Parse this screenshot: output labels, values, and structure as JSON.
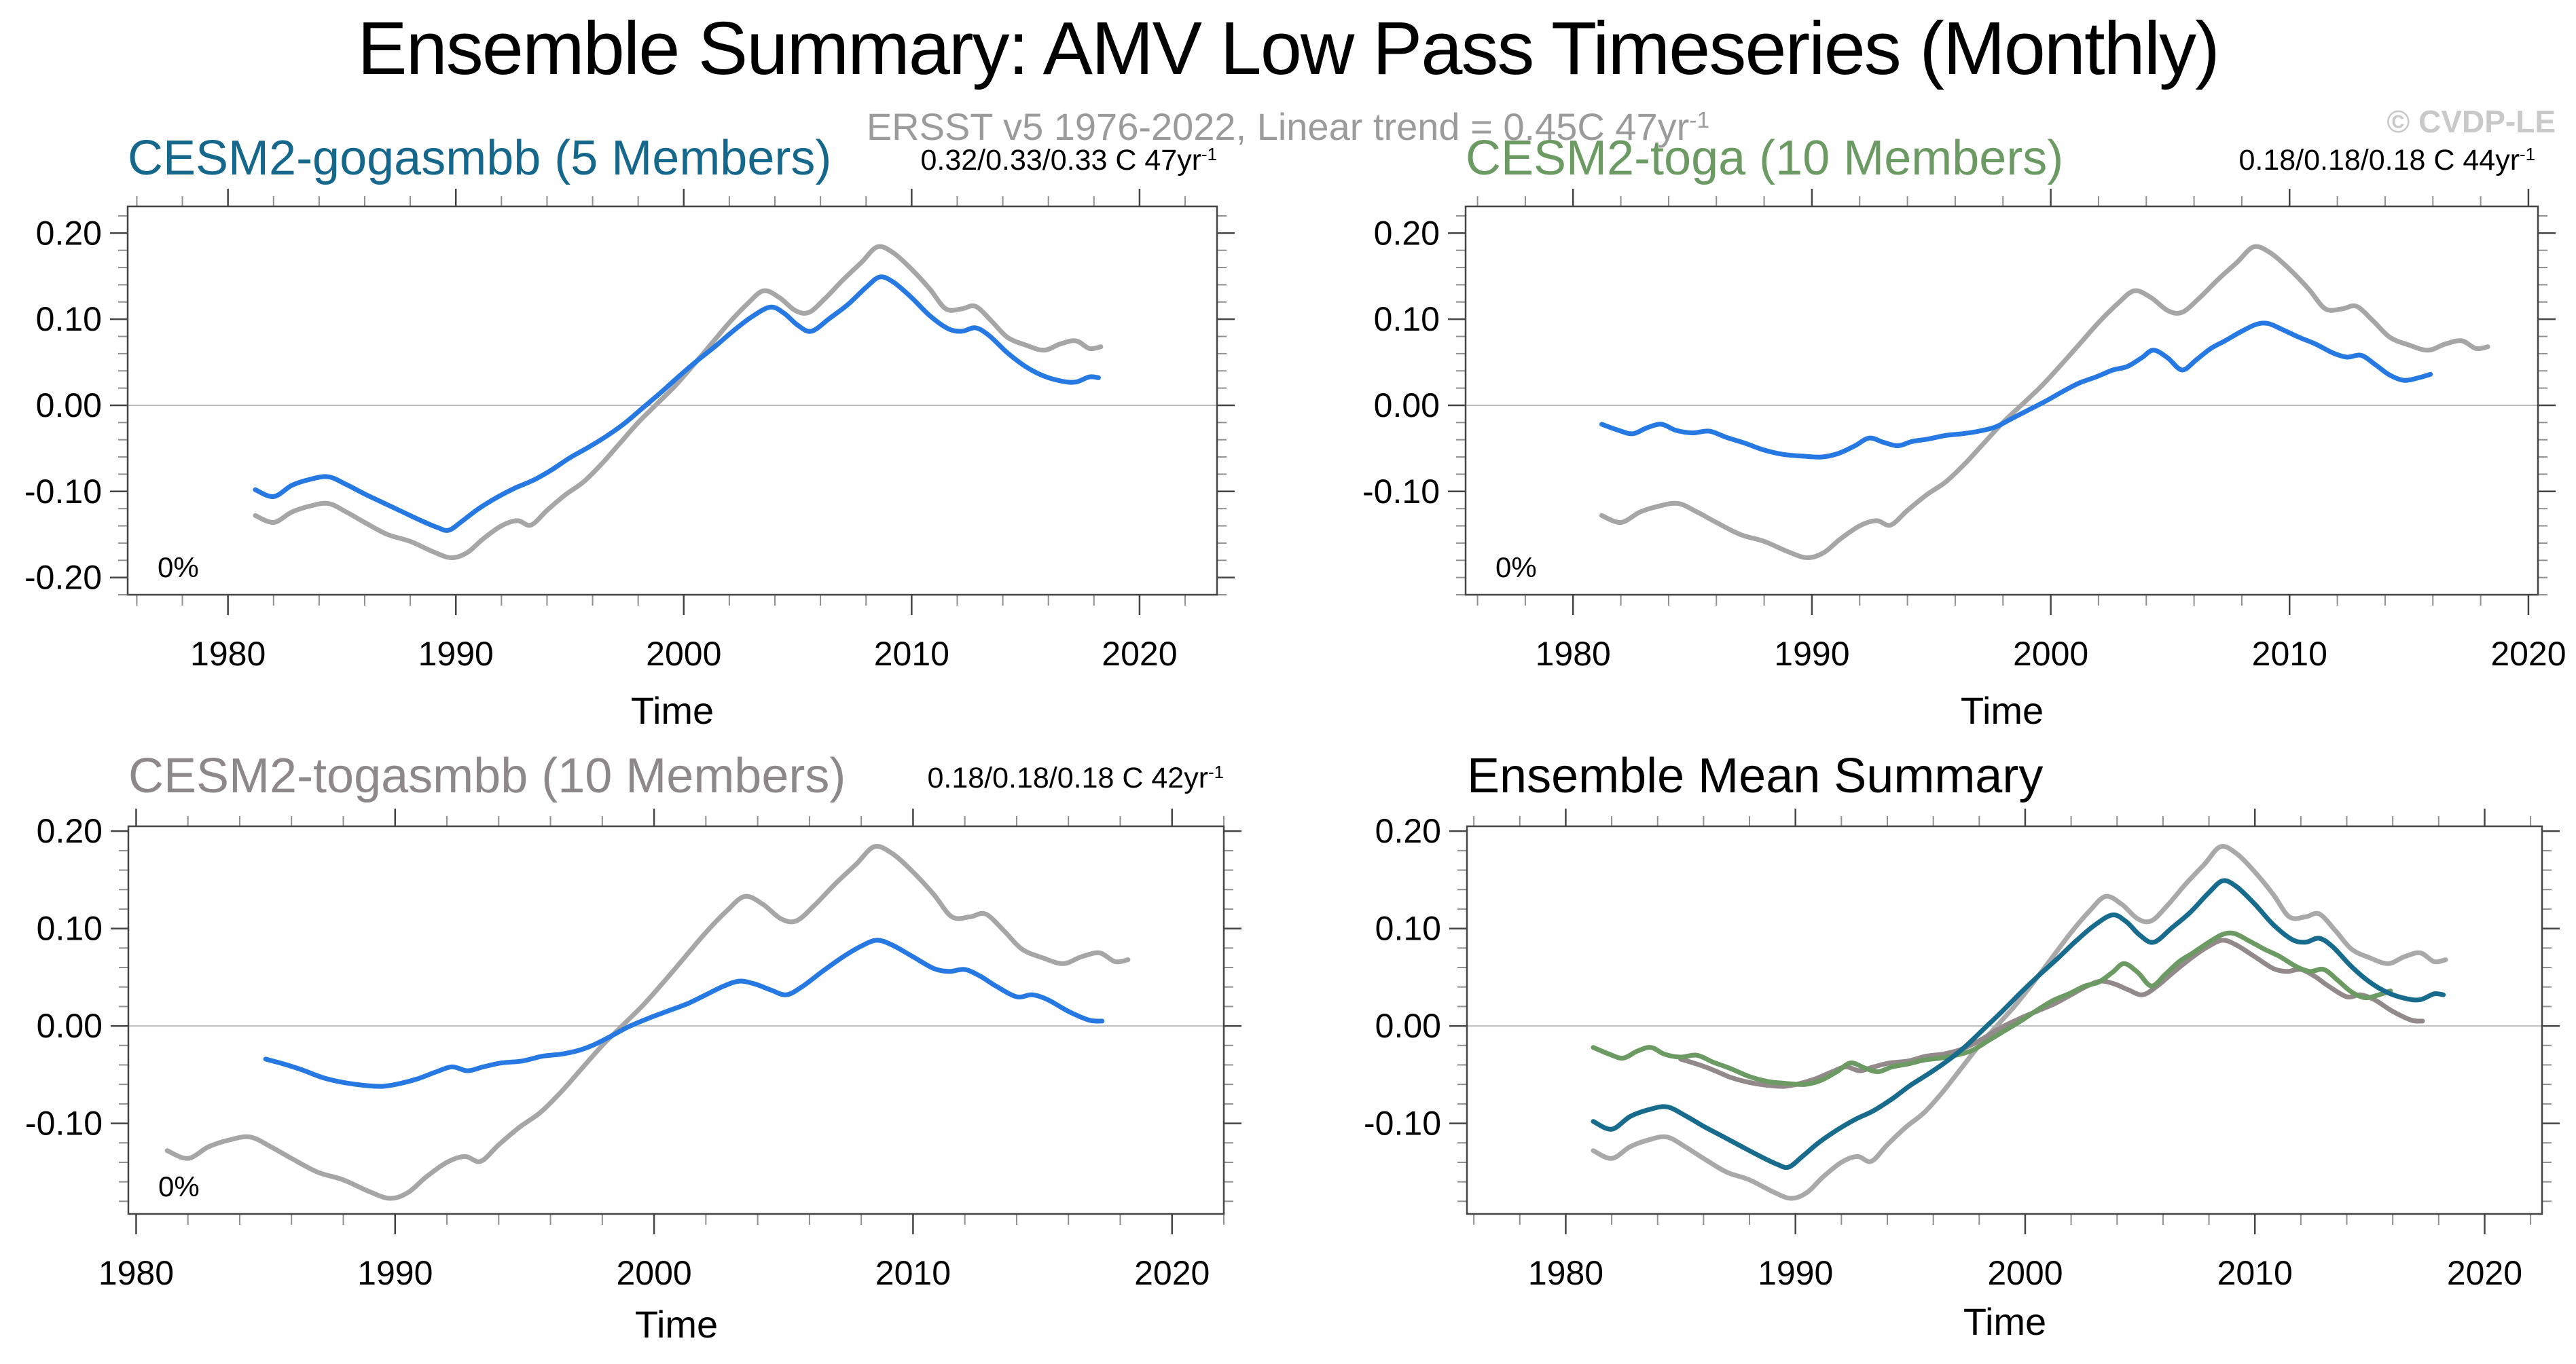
{
  "header": {
    "title": "Ensemble Summary: AMV Low Pass Timeseries (Monthly)",
    "subtitle": "ERSST v5 1976-2022, Linear trend = 0.45C 47yr",
    "subtitle_sup": "-1",
    "watermark": "© CVDP-LE"
  },
  "chart_data": {
    "type": "line",
    "xlabel": "Time",
    "grid": false,
    "legend": "none",
    "x_tick_years": [
      1980,
      1990,
      2000,
      2010,
      2020
    ],
    "x_tick_labels": [
      "1980",
      "1990",
      "2000",
      "2010",
      "2020"
    ],
    "colors": {
      "observations_gray": "#a6a6a6",
      "member_blue": "#2679e2",
      "gogasmbb_teal": "#176b8c",
      "toga_green": "#6b9a62",
      "togasmbb_mauve": "#93898a",
      "zero_line": "#bdbdbd",
      "frame": "#444444",
      "subtitle_gray": "#9b9b9b",
      "watermark_gray": "#c9c9c9"
    },
    "series": {
      "obs": {
        "points": [
          [
            1981.2,
            -0.128
          ],
          [
            1982.0,
            -0.136
          ],
          [
            1982.8,
            -0.124
          ],
          [
            1983.6,
            -0.117
          ],
          [
            1984.4,
            -0.114
          ],
          [
            1985.2,
            -0.124
          ],
          [
            1986.0,
            -0.136
          ],
          [
            1987.0,
            -0.15
          ],
          [
            1988.0,
            -0.158
          ],
          [
            1989.0,
            -0.17
          ],
          [
            1989.8,
            -0.177
          ],
          [
            1990.5,
            -0.171
          ],
          [
            1991.2,
            -0.155
          ],
          [
            1992.0,
            -0.14
          ],
          [
            1992.7,
            -0.134
          ],
          [
            1993.3,
            -0.139
          ],
          [
            1994.0,
            -0.122
          ],
          [
            1994.8,
            -0.104
          ],
          [
            1995.6,
            -0.089
          ],
          [
            1996.4,
            -0.068
          ],
          [
            1997.2,
            -0.044
          ],
          [
            1998.0,
            -0.02
          ],
          [
            1998.8,
            0.001
          ],
          [
            1999.6,
            0.022
          ],
          [
            2000.4,
            0.046
          ],
          [
            2001.2,
            0.071
          ],
          [
            2002.0,
            0.096
          ],
          [
            2002.8,
            0.118
          ],
          [
            2003.5,
            0.133
          ],
          [
            2004.2,
            0.125
          ],
          [
            2004.9,
            0.11
          ],
          [
            2005.5,
            0.108
          ],
          [
            2006.2,
            0.124
          ],
          [
            2007.0,
            0.146
          ],
          [
            2007.8,
            0.166
          ],
          [
            2008.5,
            0.184
          ],
          [
            2009.2,
            0.177
          ],
          [
            2010.0,
            0.158
          ],
          [
            2010.8,
            0.135
          ],
          [
            2011.5,
            0.112
          ],
          [
            2012.2,
            0.112
          ],
          [
            2012.8,
            0.115
          ],
          [
            2013.5,
            0.098
          ],
          [
            2014.2,
            0.079
          ],
          [
            2015.0,
            0.07
          ],
          [
            2015.8,
            0.064
          ],
          [
            2016.5,
            0.071
          ],
          [
            2017.2,
            0.075
          ],
          [
            2017.8,
            0.066
          ],
          [
            2018.3,
            0.068
          ]
        ]
      },
      "gogasmbb": {
        "points": [
          [
            1981.2,
            -0.098
          ],
          [
            1982.0,
            -0.106
          ],
          [
            1982.8,
            -0.093
          ],
          [
            1983.6,
            -0.086
          ],
          [
            1984.4,
            -0.083
          ],
          [
            1985.2,
            -0.092
          ],
          [
            1986.0,
            -0.103
          ],
          [
            1986.8,
            -0.113
          ],
          [
            1987.6,
            -0.123
          ],
          [
            1988.4,
            -0.133
          ],
          [
            1989.2,
            -0.142
          ],
          [
            1989.7,
            -0.145
          ],
          [
            1990.3,
            -0.134
          ],
          [
            1991.0,
            -0.12
          ],
          [
            1991.8,
            -0.107
          ],
          [
            1992.6,
            -0.096
          ],
          [
            1993.4,
            -0.087
          ],
          [
            1994.2,
            -0.075
          ],
          [
            1995.0,
            -0.061
          ],
          [
            1995.8,
            -0.049
          ],
          [
            1996.6,
            -0.036
          ],
          [
            1997.4,
            -0.021
          ],
          [
            1998.2,
            -0.003
          ],
          [
            1999.0,
            0.015
          ],
          [
            1999.8,
            0.034
          ],
          [
            2000.6,
            0.052
          ],
          [
            2001.4,
            0.069
          ],
          [
            2002.2,
            0.087
          ],
          [
            2003.0,
            0.103
          ],
          [
            2003.8,
            0.114
          ],
          [
            2004.4,
            0.107
          ],
          [
            2005.0,
            0.093
          ],
          [
            2005.6,
            0.086
          ],
          [
            2006.4,
            0.101
          ],
          [
            2007.2,
            0.117
          ],
          [
            2008.0,
            0.137
          ],
          [
            2008.6,
            0.149
          ],
          [
            2009.2,
            0.143
          ],
          [
            2010.0,
            0.125
          ],
          [
            2010.8,
            0.104
          ],
          [
            2011.6,
            0.089
          ],
          [
            2012.2,
            0.086
          ],
          [
            2012.8,
            0.09
          ],
          [
            2013.4,
            0.081
          ],
          [
            2014.2,
            0.061
          ],
          [
            2015.0,
            0.045
          ],
          [
            2015.8,
            0.034
          ],
          [
            2016.6,
            0.028
          ],
          [
            2017.2,
            0.027
          ],
          [
            2017.8,
            0.033
          ],
          [
            2018.2,
            0.032
          ]
        ]
      },
      "toga": {
        "points": [
          [
            1981.2,
            -0.022
          ],
          [
            1981.9,
            -0.029
          ],
          [
            1982.5,
            -0.033
          ],
          [
            1983.1,
            -0.026
          ],
          [
            1983.7,
            -0.022
          ],
          [
            1984.3,
            -0.029
          ],
          [
            1985.0,
            -0.032
          ],
          [
            1985.7,
            -0.03
          ],
          [
            1986.4,
            -0.037
          ],
          [
            1987.2,
            -0.044
          ],
          [
            1988.0,
            -0.052
          ],
          [
            1988.8,
            -0.057
          ],
          [
            1989.6,
            -0.059
          ],
          [
            1990.4,
            -0.06
          ],
          [
            1991.1,
            -0.056
          ],
          [
            1991.8,
            -0.047
          ],
          [
            1992.4,
            -0.038
          ],
          [
            1993.0,
            -0.043
          ],
          [
            1993.6,
            -0.047
          ],
          [
            1994.2,
            -0.042
          ],
          [
            1994.9,
            -0.039
          ],
          [
            1995.6,
            -0.035
          ],
          [
            1996.3,
            -0.033
          ],
          [
            1997.0,
            -0.03
          ],
          [
            1997.7,
            -0.025
          ],
          [
            1998.4,
            -0.015
          ],
          [
            1999.1,
            -0.005
          ],
          [
            1999.8,
            0.005
          ],
          [
            2000.5,
            0.016
          ],
          [
            2001.2,
            0.026
          ],
          [
            2001.9,
            0.033
          ],
          [
            2002.6,
            0.041
          ],
          [
            2003.2,
            0.045
          ],
          [
            2003.8,
            0.055
          ],
          [
            2004.3,
            0.064
          ],
          [
            2004.9,
            0.055
          ],
          [
            2005.5,
            0.041
          ],
          [
            2006.1,
            0.053
          ],
          [
            2006.7,
            0.066
          ],
          [
            2007.3,
            0.075
          ],
          [
            2008.0,
            0.086
          ],
          [
            2008.6,
            0.094
          ],
          [
            2009.1,
            0.095
          ],
          [
            2009.7,
            0.088
          ],
          [
            2010.4,
            0.079
          ],
          [
            2011.1,
            0.071
          ],
          [
            2011.8,
            0.061
          ],
          [
            2012.4,
            0.056
          ],
          [
            2013.0,
            0.058
          ],
          [
            2013.6,
            0.047
          ],
          [
            2014.2,
            0.035
          ],
          [
            2014.8,
            0.029
          ],
          [
            2015.4,
            0.032
          ],
          [
            2015.9,
            0.036
          ]
        ]
      },
      "togasmbb": {
        "points": [
          [
            1985.0,
            -0.034
          ],
          [
            1985.7,
            -0.039
          ],
          [
            1986.4,
            -0.045
          ],
          [
            1987.2,
            -0.053
          ],
          [
            1988.0,
            -0.058
          ],
          [
            1988.8,
            -0.061
          ],
          [
            1989.5,
            -0.062
          ],
          [
            1990.2,
            -0.059
          ],
          [
            1990.9,
            -0.054
          ],
          [
            1991.6,
            -0.047
          ],
          [
            1992.2,
            -0.042
          ],
          [
            1992.8,
            -0.046
          ],
          [
            1993.4,
            -0.042
          ],
          [
            1994.1,
            -0.038
          ],
          [
            1994.9,
            -0.036
          ],
          [
            1995.7,
            -0.031
          ],
          [
            1996.4,
            -0.029
          ],
          [
            1997.1,
            -0.025
          ],
          [
            1997.7,
            -0.019
          ],
          [
            1998.3,
            -0.011
          ],
          [
            1999.0,
            -0.001
          ],
          [
            1999.8,
            0.008
          ],
          [
            2000.6,
            0.016
          ],
          [
            2001.3,
            0.023
          ],
          [
            2002.0,
            0.032
          ],
          [
            2002.7,
            0.041
          ],
          [
            2003.3,
            0.046
          ],
          [
            2003.9,
            0.043
          ],
          [
            2004.5,
            0.037
          ],
          [
            2005.1,
            0.032
          ],
          [
            2005.7,
            0.04
          ],
          [
            2006.5,
            0.056
          ],
          [
            2007.3,
            0.071
          ],
          [
            2008.0,
            0.082
          ],
          [
            2008.6,
            0.088
          ],
          [
            2009.2,
            0.083
          ],
          [
            2010.0,
            0.071
          ],
          [
            2010.8,
            0.059
          ],
          [
            2011.4,
            0.056
          ],
          [
            2012.0,
            0.058
          ],
          [
            2012.6,
            0.051
          ],
          [
            2013.2,
            0.041
          ],
          [
            2014.0,
            0.03
          ],
          [
            2014.6,
            0.032
          ],
          [
            2015.2,
            0.027
          ],
          [
            2016.0,
            0.015
          ],
          [
            2016.8,
            0.006
          ],
          [
            2017.3,
            0.005
          ]
        ]
      }
    },
    "panels": [
      {
        "id": "top-left",
        "title": "CESM2-gogasmbb (5 Members)",
        "title_color": "#15688c",
        "trend": "0.32/0.33/0.33 C 47yr",
        "trend_sup": "-1",
        "pct_label": "0%",
        "xlim": [
          1975.6,
          2023.4
        ],
        "ylim": [
          -0.22,
          0.231
        ],
        "yticks": [
          {
            "v": 0.2,
            "label": "0.20"
          },
          {
            "v": 0.1,
            "label": "0.10"
          },
          {
            "v": 0.0,
            "label": "0.00"
          },
          {
            "v": -0.1,
            "label": "-0.10"
          },
          {
            "v": -0.2,
            "label": "-0.20"
          }
        ],
        "lines": [
          {
            "series": "obs",
            "color": "#a6a6a6"
          },
          {
            "series": "gogasmbb",
            "color": "#2679e2"
          }
        ]
      },
      {
        "id": "top-right",
        "title": "CESM2-toga (10 Members)",
        "title_color": "#6b9a62",
        "trend": "0.18/0.18/0.18 C 44yr",
        "trend_sup": "-1",
        "pct_label": "0%",
        "xlim": [
          1975.5,
          2020.4
        ],
        "ylim": [
          -0.22,
          0.231
        ],
        "yticks": [
          {
            "v": 0.2,
            "label": "0.20"
          },
          {
            "v": 0.1,
            "label": "0.10"
          },
          {
            "v": 0.0,
            "label": "0.00"
          },
          {
            "v": -0.1,
            "label": "-0.10"
          }
        ],
        "lines": [
          {
            "series": "obs",
            "color": "#a6a6a6"
          },
          {
            "series": "toga",
            "color": "#2679e2"
          }
        ]
      },
      {
        "id": "bottom-left",
        "title": "CESM2-togasmbb (10 Members)",
        "title_color": "#8f888a",
        "trend": "0.18/0.18/0.18 C 42yr",
        "trend_sup": "-1",
        "pct_label": "0%",
        "xlim": [
          1979.7,
          2022.0
        ],
        "ylim": [
          -0.193,
          0.205
        ],
        "yticks": [
          {
            "v": 0.2,
            "label": "0.20"
          },
          {
            "v": 0.1,
            "label": "0.10"
          },
          {
            "v": 0.0,
            "label": "0.00"
          },
          {
            "v": -0.1,
            "label": "-0.10"
          }
        ],
        "lines": [
          {
            "series": "obs",
            "color": "#a6a6a6"
          },
          {
            "series": "togasmbb",
            "color": "#2679e2"
          }
        ]
      },
      {
        "id": "bottom-right",
        "title": "Ensemble Mean Summary",
        "title_color": "#000000",
        "trend": null,
        "trend_sup": null,
        "pct_label": null,
        "xlim": [
          1975.7,
          2022.5
        ],
        "ylim": [
          -0.193,
          0.205
        ],
        "yticks": [
          {
            "v": 0.2,
            "label": "0.20"
          },
          {
            "v": 0.1,
            "label": "0.10"
          },
          {
            "v": 0.0,
            "label": "0.00"
          },
          {
            "v": -0.1,
            "label": "-0.10"
          }
        ],
        "lines": [
          {
            "series": "obs",
            "color": "#a9a9a9"
          },
          {
            "series": "togasmbb",
            "color": "#93898a"
          },
          {
            "series": "toga",
            "color": "#6b9a62"
          },
          {
            "series": "gogasmbb",
            "color": "#176b8c"
          }
        ]
      }
    ]
  }
}
